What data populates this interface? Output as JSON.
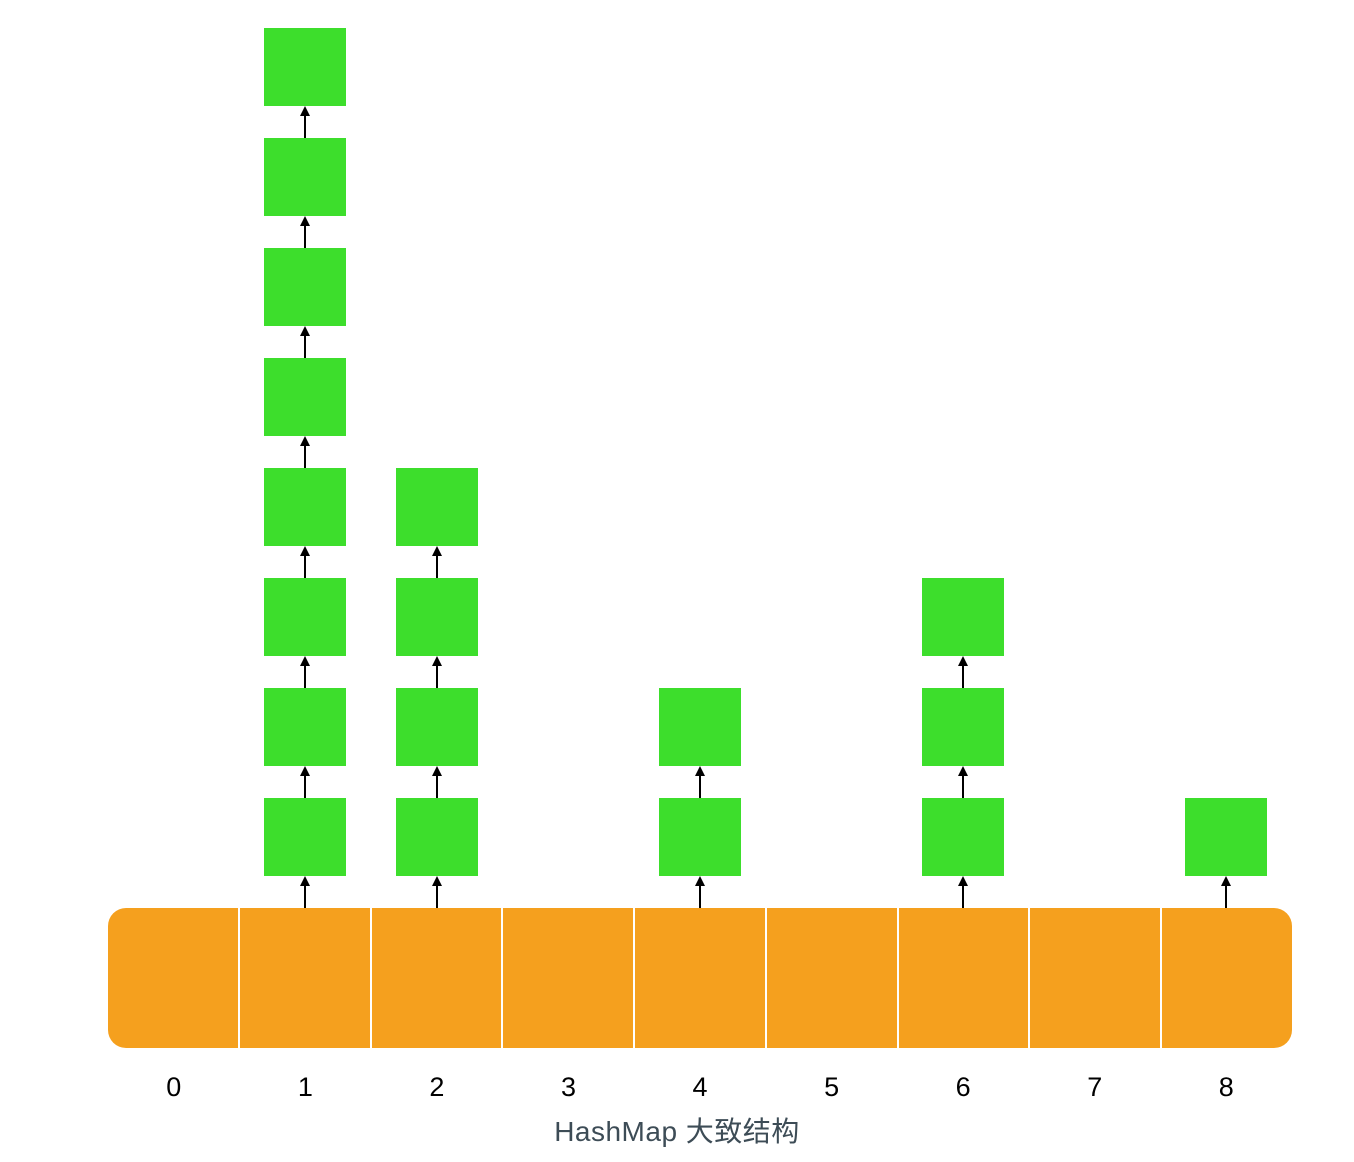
{
  "caption": "HashMap 大致结构",
  "buckets": [
    {
      "index": "0",
      "nodes": 0
    },
    {
      "index": "1",
      "nodes": 8
    },
    {
      "index": "2",
      "nodes": 4
    },
    {
      "index": "3",
      "nodes": 0
    },
    {
      "index": "4",
      "nodes": 2
    },
    {
      "index": "5",
      "nodes": 0
    },
    {
      "index": "6",
      "nodes": 3
    },
    {
      "index": "7",
      "nodes": 0
    },
    {
      "index": "8",
      "nodes": 1
    }
  ],
  "colors": {
    "bucket_fill": "#F5A01E",
    "node_fill": "#3DDE2C",
    "arrow": "#000000",
    "label_text": "#000000",
    "caption_text": "#3D4C56"
  }
}
